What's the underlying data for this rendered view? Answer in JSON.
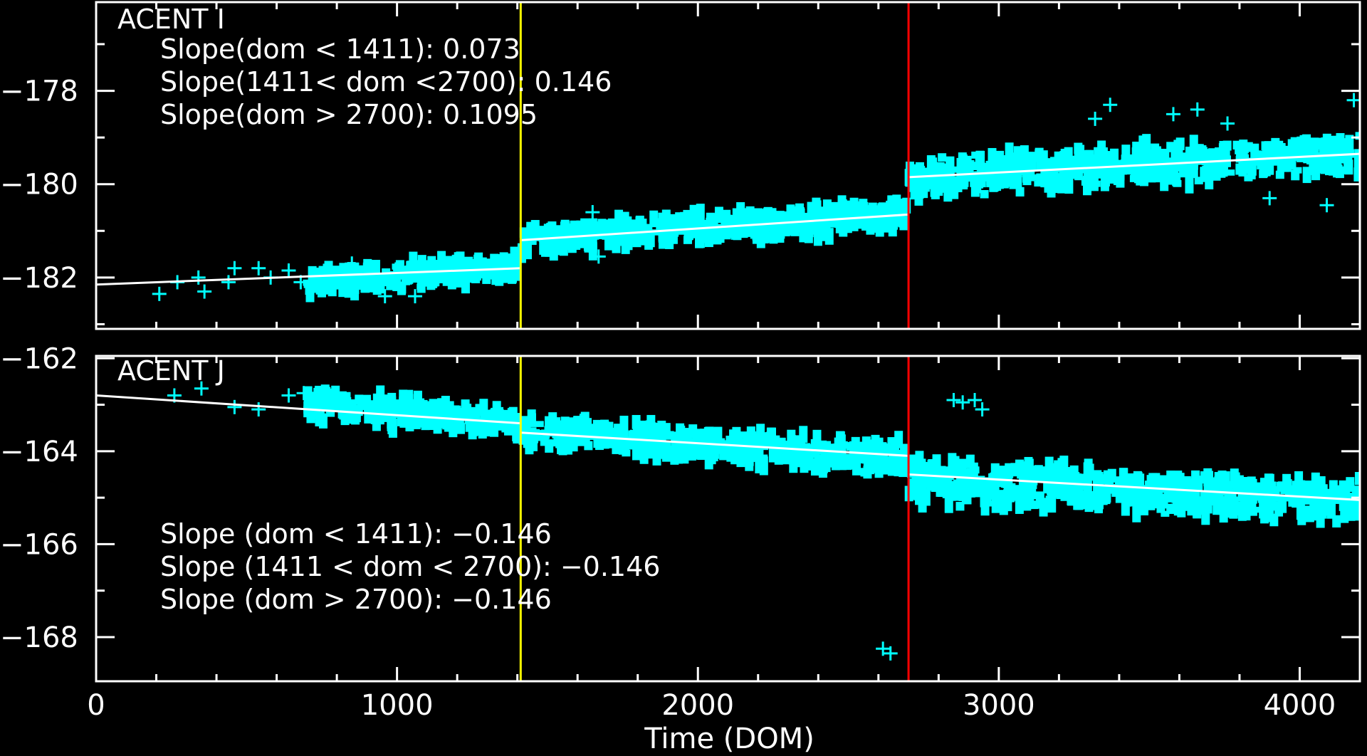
{
  "chart_data": [
    {
      "type": "scatter",
      "title": "ACENT I",
      "xlabel": "",
      "ylabel": "",
      "xlim": [
        0,
        4200
      ],
      "ylim": [
        -183.1,
        -176.1
      ],
      "yticks": [
        -178,
        -180,
        -182
      ],
      "xticks": [
        0,
        1000,
        2000,
        3000,
        4000
      ],
      "grid": false,
      "colors": {
        "data": "#00ffff",
        "fit": "#ffffff",
        "boundary1": "#ffff00",
        "boundary2": "#ff0000",
        "axes": "#ffffff"
      },
      "boundaries": [
        1411,
        2700
      ],
      "annotations": [
        "Slope(dom < 1411): 0.073",
        "Slope(1411< dom <2700): 0.146",
        "Slope(dom > 2700): 0.1095"
      ],
      "fits": [
        {
          "x": [
            0,
            1411
          ],
          "y": [
            -182.15,
            -181.8
          ]
        },
        {
          "x": [
            1411,
            2700
          ],
          "y": [
            -181.2,
            -180.65
          ]
        },
        {
          "x": [
            2700,
            4200
          ],
          "y": [
            -179.85,
            -179.35
          ]
        }
      ],
      "bands": [
        {
          "x": [
            700,
            1411
          ],
          "y": [
            -182.1,
            -181.75
          ],
          "spread": 0.32
        },
        {
          "x": [
            1411,
            2700
          ],
          "y": [
            -181.2,
            -180.65
          ],
          "spread": 0.38
        },
        {
          "x": [
            2700,
            4200
          ],
          "y": [
            -179.85,
            -179.35
          ],
          "spread": 0.5
        }
      ],
      "points": [
        {
          "x": 210,
          "y": -182.35
        },
        {
          "x": 270,
          "y": -182.1
        },
        {
          "x": 340,
          "y": -182.0
        },
        {
          "x": 360,
          "y": -182.3
        },
        {
          "x": 440,
          "y": -182.1
        },
        {
          "x": 460,
          "y": -181.8
        },
        {
          "x": 540,
          "y": -181.8
        },
        {
          "x": 580,
          "y": -182.0
        },
        {
          "x": 640,
          "y": -181.85
        },
        {
          "x": 680,
          "y": -182.1
        },
        {
          "x": 850,
          "y": -181.7
        },
        {
          "x": 960,
          "y": -182.4
        },
        {
          "x": 1060,
          "y": -182.4
        },
        {
          "x": 1650,
          "y": -180.6
        },
        {
          "x": 1670,
          "y": -181.55
        },
        {
          "x": 3170,
          "y": -179.6
        },
        {
          "x": 3320,
          "y": -178.6
        },
        {
          "x": 3370,
          "y": -178.3
        },
        {
          "x": 3580,
          "y": -178.5
        },
        {
          "x": 3660,
          "y": -178.4
        },
        {
          "x": 3760,
          "y": -178.7
        },
        {
          "x": 3900,
          "y": -180.3
        },
        {
          "x": 4090,
          "y": -180.45
        },
        {
          "x": 4180,
          "y": -178.2
        }
      ]
    },
    {
      "type": "scatter",
      "title": "ACENT J",
      "xlabel": "Time (DOM)",
      "ylabel": "",
      "xlim": [
        0,
        4200
      ],
      "ylim": [
        -168.95,
        -161.95
      ],
      "yticks": [
        -162,
        -164,
        -166,
        -168
      ],
      "xticks": [
        0,
        1000,
        2000,
        3000,
        4000
      ],
      "xticklabels": [
        "0",
        "1000",
        "2000",
        "3000",
        "4000"
      ],
      "grid": false,
      "colors": {
        "data": "#00ffff",
        "fit": "#ffffff",
        "boundary1": "#ffff00",
        "boundary2": "#ff0000",
        "axes": "#ffffff"
      },
      "boundaries": [
        1411,
        2700
      ],
      "annotations": [
        "Slope (dom < 1411): −0.146",
        "Slope (1411 < dom < 2700): −0.146",
        "Slope (dom > 2700): −0.146"
      ],
      "fits": [
        {
          "x": [
            0,
            1411
          ],
          "y": [
            -162.8,
            -163.4
          ]
        },
        {
          "x": [
            1411,
            2700
          ],
          "y": [
            -163.6,
            -164.1
          ]
        },
        {
          "x": [
            2700,
            4200
          ],
          "y": [
            -164.5,
            -165.05
          ]
        }
      ],
      "bands": [
        {
          "x": [
            700,
            1411
          ],
          "y": [
            -162.95,
            -163.4
          ],
          "spread": 0.38
        },
        {
          "x": [
            1411,
            2700
          ],
          "y": [
            -163.6,
            -164.15
          ],
          "spread": 0.42
        },
        {
          "x": [
            2700,
            4200
          ],
          "y": [
            -164.6,
            -165.1
          ],
          "spread": 0.55
        }
      ],
      "points": [
        {
          "x": 260,
          "y": -162.8
        },
        {
          "x": 350,
          "y": -162.65
        },
        {
          "x": 460,
          "y": -163.05
        },
        {
          "x": 540,
          "y": -163.1
        },
        {
          "x": 640,
          "y": -162.8
        },
        {
          "x": 690,
          "y": -162.75
        },
        {
          "x": 2615,
          "y": -168.25
        },
        {
          "x": 2640,
          "y": -168.35
        },
        {
          "x": 2850,
          "y": -162.9
        },
        {
          "x": 2880,
          "y": -162.95
        },
        {
          "x": 2920,
          "y": -162.9
        },
        {
          "x": 2945,
          "y": -163.1
        }
      ]
    }
  ]
}
